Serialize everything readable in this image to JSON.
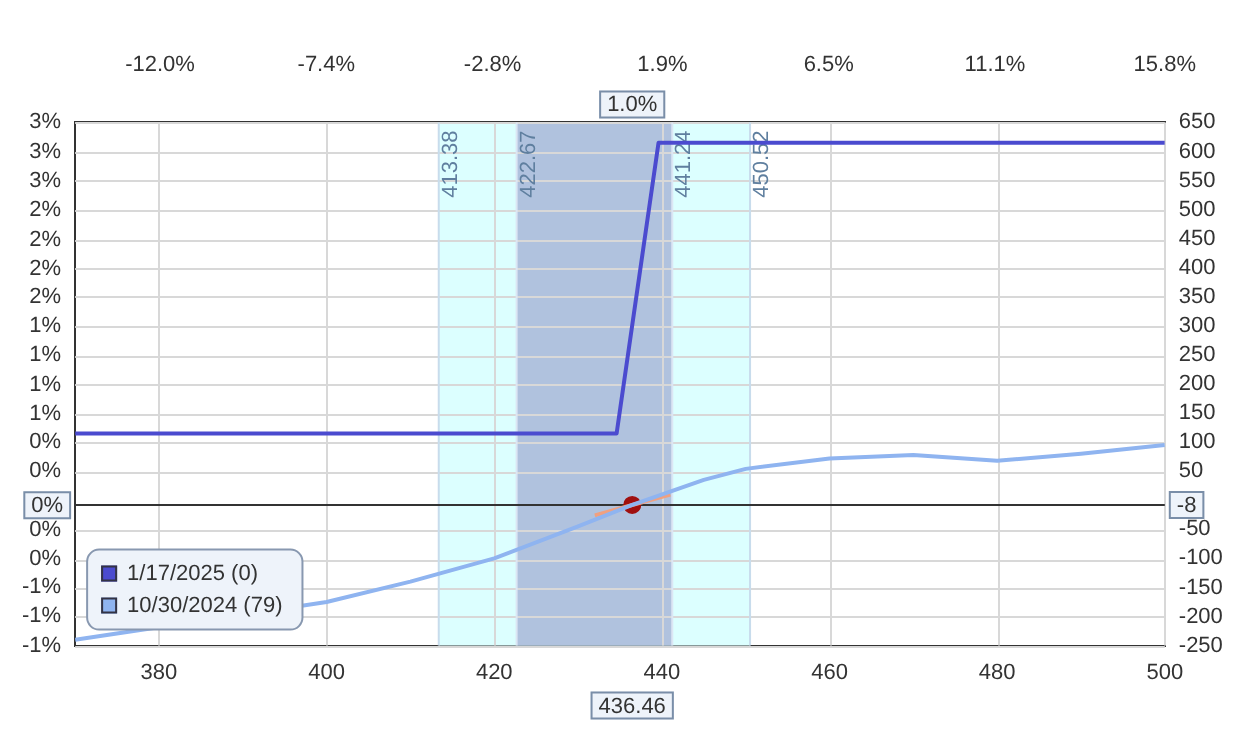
{
  "chart_data": {
    "type": "line",
    "x": [
      370,
      434.6,
      439.6,
      500
    ],
    "series": [
      {
        "name": "1/17/2025 (0)",
        "color": "#4b4bcf",
        "axis": "y2",
        "values": [
          115,
          115,
          615,
          615
        ]
      },
      {
        "name": "10/30/2024 (79)",
        "color": "#8fb4f0",
        "axis": "y2",
        "x": [
          370,
          400,
          410,
          420,
          430,
          436.46,
          445,
          450,
          460,
          470,
          480,
          490,
          500
        ],
        "values": [
          -240,
          -175,
          -140,
          -100,
          -45,
          -8,
          35,
          54,
          72,
          78,
          68,
          80,
          95
        ]
      },
      {
        "color": "#f0a080",
        "type": "line",
        "axis": "y2",
        "x": [
          432,
          441
        ],
        "values": [
          -26,
          10
        ]
      },
      {
        "color": "#a01010",
        "type": "scatter",
        "marker": "circle",
        "axis": "y2",
        "x": [
          436.46
        ],
        "values": [
          -8
        ]
      }
    ],
    "xlim": [
      370,
      500
    ],
    "xticks": [
      380,
      400,
      420,
      440,
      460,
      480,
      500
    ],
    "x2lim": [
      -14.35,
      15.8
    ],
    "x2ticks": [
      {
        "value": -12.0,
        "label": "-12.0%"
      },
      {
        "value": -7.4,
        "label": "-7.4%"
      },
      {
        "value": -2.8,
        "label": "-2.8%"
      },
      {
        "value": 1.9,
        "label": "1.9%"
      },
      {
        "value": 6.5,
        "label": "6.5%"
      },
      {
        "value": 11.1,
        "label": "11.1%"
      },
      {
        "value": 15.8,
        "label": "15.8%"
      }
    ],
    "ylim": [
      -1.19,
      3.1
    ],
    "yticks": [
      {
        "value": 3.1,
        "label": "3%"
      },
      {
        "value": 2.86,
        "label": "3%"
      },
      {
        "value": 2.62,
        "label": "3%"
      },
      {
        "value": 2.38,
        "label": "2%"
      },
      {
        "value": 2.14,
        "label": "2%"
      },
      {
        "value": 1.9,
        "label": "2%"
      },
      {
        "value": 1.67,
        "label": "2%"
      },
      {
        "value": 1.43,
        "label": "1%"
      },
      {
        "value": 1.19,
        "label": "1%"
      },
      {
        "value": 0.95,
        "label": "1%"
      },
      {
        "value": 0.71,
        "label": "1%"
      },
      {
        "value": 0.48,
        "label": "0%"
      },
      {
        "value": 0.24,
        "label": "0%"
      },
      {
        "value": -0.24,
        "label": "0%"
      },
      {
        "value": -0.48,
        "label": "0%"
      },
      {
        "value": -0.71,
        "label": "-1%"
      },
      {
        "value": -0.95,
        "label": "-1%"
      },
      {
        "value": -1.19,
        "label": "-1%"
      }
    ],
    "y2lim": [
      -250,
      650
    ],
    "y2ticks": [
      650,
      600,
      550,
      500,
      450,
      400,
      350,
      300,
      250,
      200,
      150,
      100,
      50,
      -50,
      -100,
      -150,
      -200,
      -250
    ],
    "bands": [
      {
        "axis": "x",
        "from": 413.38,
        "to": 450.52,
        "color": "#dcffff"
      },
      {
        "axis": "x",
        "from": 422.67,
        "to": 441.24,
        "color": "#b0c2de"
      }
    ],
    "ref_lines": [
      {
        "axis": "x",
        "value": 413.38,
        "label": "413.38",
        "color": "#c8dcec"
      },
      {
        "axis": "x",
        "value": 422.67,
        "label": "422.67",
        "color": "#dce6f4"
      },
      {
        "axis": "x",
        "value": 441.24,
        "label": "441.24",
        "color": "#dce6f4"
      },
      {
        "axis": "x",
        "value": 450.52,
        "label": "450.52",
        "color": "#c8dcec"
      },
      {
        "axis": "y2",
        "value": -8,
        "label": "-8",
        "color": "#333333"
      }
    ],
    "annotations": [
      {
        "text": "436.46",
        "x": 436.46,
        "y": -1.19
      },
      {
        "text": "1.0%",
        "x": 436.46,
        "y": 3.1
      },
      {
        "text": "0%",
        "y": -0.04
      }
    ],
    "grid": true,
    "legend": "bottom left",
    "marker": "none",
    "line_style": "solid"
  }
}
